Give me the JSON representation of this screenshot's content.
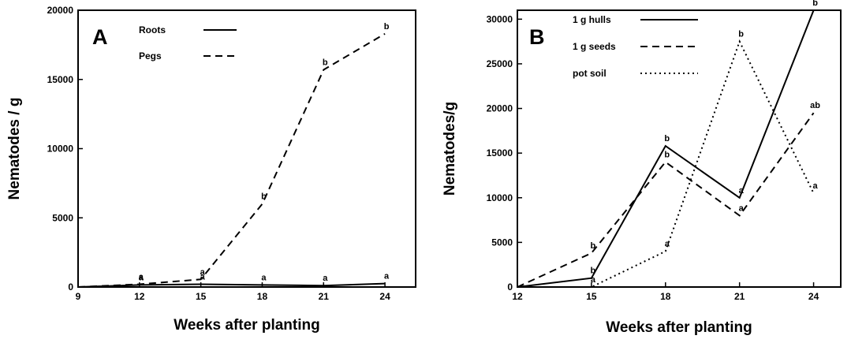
{
  "chart_data": [
    {
      "panel_label": "A",
      "type": "line",
      "xlabel": "Weeks after planting",
      "ylabel": "Nematodes / g",
      "xlim": [
        9,
        25.5
      ],
      "ylim": [
        0,
        20000
      ],
      "xticks": [
        9,
        12,
        15,
        18,
        21,
        24
      ],
      "yticks": [
        0,
        5000,
        10000,
        15000,
        20000
      ],
      "legend_position": "top-left",
      "grid": false,
      "series": [
        {
          "name": "Roots",
          "style": "solid",
          "x": [
            9,
            12,
            15,
            18,
            21,
            24
          ],
          "y": [
            0,
            150,
            200,
            150,
            100,
            250
          ],
          "labels": [
            "",
            "a",
            "a",
            "a",
            "a",
            "a"
          ]
        },
        {
          "name": "Pegs",
          "style": "dashed",
          "x": [
            9,
            12,
            15,
            18,
            21,
            24
          ],
          "y": [
            0,
            200,
            550,
            6000,
            15700,
            18300
          ],
          "labels": [
            "",
            "a",
            "a",
            "b",
            "b",
            "b"
          ]
        }
      ]
    },
    {
      "panel_label": "B",
      "type": "line",
      "xlabel": "Weeks after planting",
      "ylabel": "Nematodes/g",
      "xlim": [
        12,
        25.1
      ],
      "ylim": [
        0,
        31000
      ],
      "xticks": [
        12,
        15,
        18,
        21,
        24
      ],
      "yticks": [
        0,
        5000,
        10000,
        15000,
        20000,
        25000,
        30000
      ],
      "legend_position": "top-left",
      "grid": false,
      "series": [
        {
          "name": "1 g hulls",
          "style": "solid",
          "x": [
            12,
            15,
            18,
            21,
            24
          ],
          "y": [
            0,
            1000,
            15800,
            10000,
            31000
          ],
          "labels": [
            "",
            "b",
            "b",
            "a",
            "b"
          ]
        },
        {
          "name": "1 g seeds",
          "style": "dashed",
          "x": [
            12,
            15,
            18,
            21,
            24
          ],
          "y": [
            0,
            3800,
            14000,
            8000,
            19500
          ],
          "labels": [
            "",
            "b",
            "b",
            "a",
            "ab"
          ]
        },
        {
          "name": "pot soil",
          "style": "dotted",
          "x": [
            12,
            15,
            18,
            21,
            24
          ],
          "y": [
            0,
            0,
            4000,
            27500,
            10500
          ],
          "labels": [
            "",
            "a",
            "a",
            "b",
            "a"
          ]
        }
      ]
    }
  ]
}
